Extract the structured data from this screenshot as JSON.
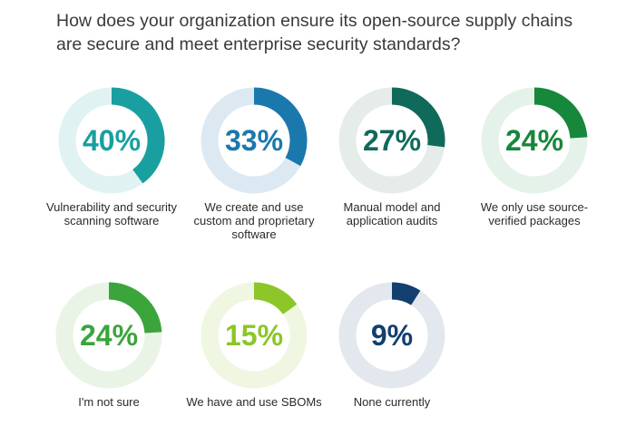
{
  "chart_data": {
    "type": "donut",
    "title": "How does your organization ensure its open-source supply chains are secure and meet enterprise security standards?",
    "unit": "%",
    "items": [
      {
        "label": "Vulnerability and security scanning software",
        "value": 40,
        "display": "40%",
        "color": "#1a9fa0",
        "track": "#e0f2f2"
      },
      {
        "label": "We create and use custom and proprietary software",
        "value": 33,
        "display": "33%",
        "color": "#1b78ad",
        "track": "#dde9f2"
      },
      {
        "label": "Manual model and application audits",
        "value": 27,
        "display": "27%",
        "color": "#0f6a5a",
        "track": "#e6ecea"
      },
      {
        "label": "We only use source-verified packages",
        "value": 24,
        "display": "24%",
        "color": "#17873c",
        "track": "#e5f2ea"
      },
      {
        "label": "I'm not sure",
        "value": 24,
        "display": "24%",
        "color": "#3ba53b",
        "track": "#e9f4e6"
      },
      {
        "label": "We have and use SBOMs",
        "value": 15,
        "display": "15%",
        "color": "#8cc628",
        "track": "#eff7e2"
      },
      {
        "label": "None currently",
        "value": 9,
        "display": "9%",
        "color": "#123f6e",
        "track": "#e3e8ee"
      }
    ]
  }
}
